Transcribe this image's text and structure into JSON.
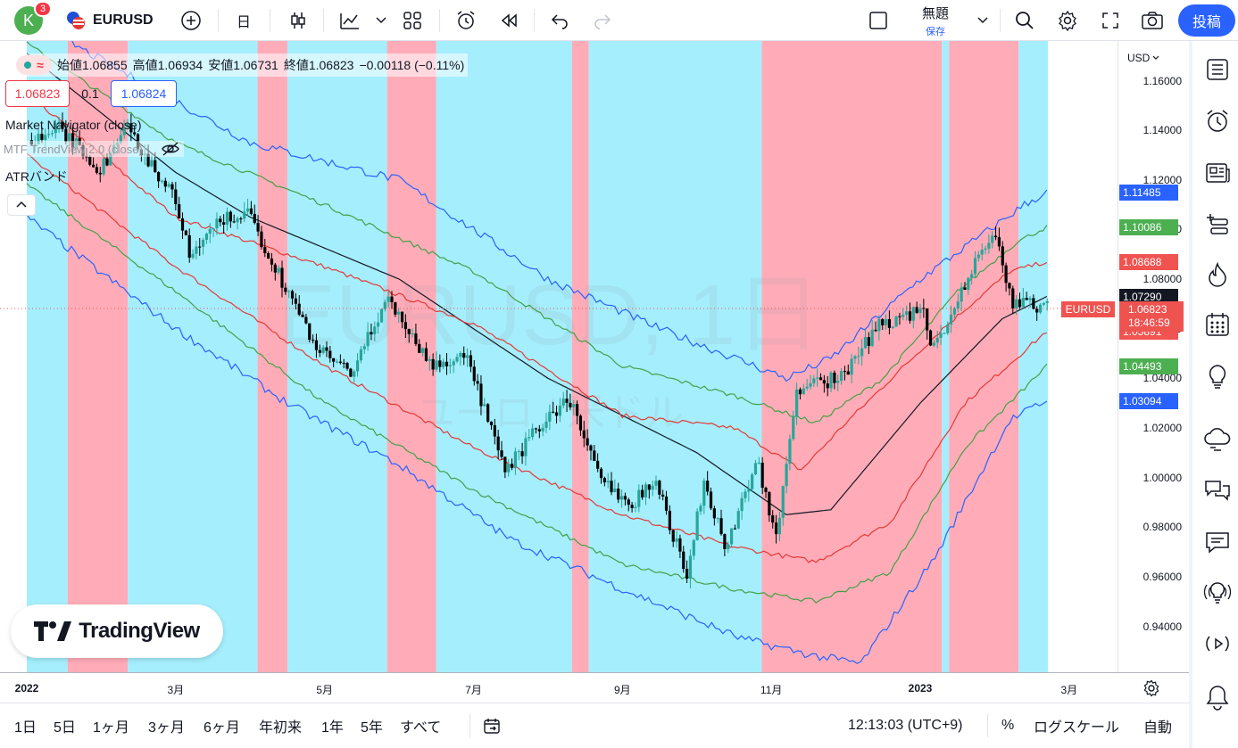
{
  "toolbar": {
    "avatar_letter": "K",
    "notification_count": "3",
    "symbol": "EURUSD",
    "interval": "日",
    "layout_name": "無題",
    "layout_sub": "保存",
    "publish_label": "投稿"
  },
  "legend": {
    "open_label": "始値",
    "open": "1.06855",
    "high_label": "高値",
    "high": "1.06934",
    "low_label": "安値",
    "low": "1.06731",
    "close_label": "終値",
    "close": "1.06823",
    "change": "−0.00118 (−0.11%)",
    "bid": "1.06823",
    "spread": "0.1",
    "ask": "1.06824",
    "indicators": [
      "Market Navigator (close)",
      "MTF TrendView 2.0 (close)",
      "ATRバンド"
    ]
  },
  "watermark": {
    "title": "EURUSD, 1日",
    "subtitle": "ユーロ / 米ドル"
  },
  "brand": "TradingView",
  "price_axis": {
    "currency": "USD",
    "ticks": [
      "1.16000",
      "1.14000",
      "1.12000",
      "1.10000",
      "1.08000",
      "1.06000",
      "1.04000",
      "1.02000",
      "1.00000",
      "0.98000",
      "0.96000",
      "0.94000"
    ],
    "labels": [
      {
        "value": "1.11485",
        "color": "#2962ff"
      },
      {
        "value": "1.10086",
        "color": "#4caf50"
      },
      {
        "value": "1.08688",
        "color": "#f05350"
      },
      {
        "value": "1.07290",
        "color": "#131722"
      },
      {
        "value": "1.05891",
        "color": "#f05350"
      },
      {
        "value": "1.04493",
        "color": "#4caf50"
      },
      {
        "value": "1.03094",
        "color": "#2962ff"
      }
    ],
    "current": {
      "symbol": "EURUSD",
      "price": "1.06823",
      "countdown": "18:46:59",
      "color": "#ef5350"
    }
  },
  "time_axis": [
    "2022",
    "3月",
    "5月",
    "7月",
    "9月",
    "11月",
    "2023",
    "3月"
  ],
  "bottom": {
    "ranges": [
      "1日",
      "5日",
      "1ヶ月",
      "3ヶ月",
      "6ヶ月",
      "年初来",
      "1年",
      "5年",
      "すべて"
    ],
    "clock": "12:13:03 (UTC+9)",
    "percent": "%",
    "log": "ログスケール",
    "auto": "自動"
  },
  "colors": {
    "up": "#26a69a",
    "down": "#000000",
    "bg_cyan": "#a5eefd",
    "bg_pink": "#ffacb8",
    "band_blue": "#2962ff",
    "band_green": "#43a047",
    "band_red": "#e53935",
    "mid": "#131722"
  },
  "chart_data": {
    "type": "candlestick",
    "symbol": "EURUSD",
    "interval": "1D",
    "ylim": [
      0.925,
      1.172
    ],
    "note_x": "months from 2022-01-01 (0 = 2022-01, 12 = 2023-01)",
    "regimes": [
      {
        "from": "2022-01-01",
        "to": "2022-01-18",
        "state": "bullish"
      },
      {
        "from": "2022-01-18",
        "to": "2022-02-11",
        "state": "bearish"
      },
      {
        "from": "2022-02-11",
        "to": "2022-04-04",
        "state": "bullish"
      },
      {
        "from": "2022-04-04",
        "to": "2022-04-16",
        "state": "bearish"
      },
      {
        "from": "2022-04-16",
        "to": "2022-05-27",
        "state": "bullish"
      },
      {
        "from": "2022-05-27",
        "to": "2022-06-16",
        "state": "bearish"
      },
      {
        "from": "2022-06-16",
        "to": "2022-08-11",
        "state": "bullish"
      },
      {
        "from": "2022-08-11",
        "to": "2022-08-18",
        "state": "bearish"
      },
      {
        "from": "2022-08-18",
        "to": "2022-10-28",
        "state": "bullish"
      },
      {
        "from": "2022-10-28",
        "to": "2023-01-10",
        "state": "bearish"
      },
      {
        "from": "2023-01-10",
        "to": "2023-01-13",
        "state": "bullish"
      },
      {
        "from": "2023-01-13",
        "to": "2023-02-10",
        "state": "bearish"
      },
      {
        "from": "2023-02-10",
        "to": "2023-02-21",
        "state": "bullish"
      }
    ],
    "close_path": [
      {
        "date": "2022-01-03",
        "close": 1.136
      },
      {
        "date": "2022-01-14",
        "close": 1.141
      },
      {
        "date": "2022-02-01",
        "close": 1.124
      },
      {
        "date": "2022-02-10",
        "close": 1.142
      },
      {
        "date": "2022-03-01",
        "close": 1.112
      },
      {
        "date": "2022-03-07",
        "close": 1.088
      },
      {
        "date": "2022-03-20",
        "close": 1.104
      },
      {
        "date": "2022-03-31",
        "close": 1.106
      },
      {
        "date": "2022-04-12",
        "close": 1.083
      },
      {
        "date": "2022-04-28",
        "close": 1.052
      },
      {
        "date": "2022-05-12",
        "close": 1.041
      },
      {
        "date": "2022-05-27",
        "close": 1.073
      },
      {
        "date": "2022-06-14",
        "close": 1.045
      },
      {
        "date": "2022-06-28",
        "close": 1.049
      },
      {
        "date": "2022-07-14",
        "close": 1.002
      },
      {
        "date": "2022-07-28",
        "close": 1.02
      },
      {
        "date": "2022-08-10",
        "close": 1.032
      },
      {
        "date": "2022-08-23",
        "close": 0.998
      },
      {
        "date": "2022-09-06",
        "close": 0.99
      },
      {
        "date": "2022-09-14",
        "close": 1.0
      },
      {
        "date": "2022-09-27",
        "close": 0.96
      },
      {
        "date": "2022-10-04",
        "close": 0.999
      },
      {
        "date": "2022-10-13",
        "close": 0.971
      },
      {
        "date": "2022-10-26",
        "close": 1.008
      },
      {
        "date": "2022-11-03",
        "close": 0.975
      },
      {
        "date": "2022-11-11",
        "close": 1.035
      },
      {
        "date": "2022-11-30",
        "close": 1.041
      },
      {
        "date": "2022-12-15",
        "close": 1.062
      },
      {
        "date": "2023-01-02",
        "close": 1.067
      },
      {
        "date": "2023-01-06",
        "close": 1.051
      },
      {
        "date": "2023-01-26",
        "close": 1.09
      },
      {
        "date": "2023-02-02",
        "close": 1.099
      },
      {
        "date": "2023-02-07",
        "close": 1.071
      },
      {
        "date": "2023-02-21",
        "close": 1.068
      }
    ],
    "bands": {
      "mid": [
        [
          0,
          1.171
        ],
        [
          2,
          1.123
        ],
        [
          3,
          1.105
        ],
        [
          5,
          1.08
        ],
        [
          7,
          1.04
        ],
        [
          9,
          1.01
        ],
        [
          10.2,
          0.985
        ],
        [
          10.8,
          0.987
        ],
        [
          12,
          1.03
        ],
        [
          13.1,
          1.064
        ],
        [
          13.7,
          1.073
        ]
      ],
      "red_upper": [
        [
          0,
          1.155
        ],
        [
          2,
          1.105
        ],
        [
          4,
          1.085
        ],
        [
          6,
          1.062
        ],
        [
          8,
          1.025
        ],
        [
          9.5,
          1.02
        ],
        [
          10.4,
          1.003
        ],
        [
          11,
          1.022
        ],
        [
          12.3,
          1.06
        ],
        [
          13.2,
          1.083
        ],
        [
          13.7,
          1.087
        ]
      ],
      "red_lower": [
        [
          0,
          1.13
        ],
        [
          2,
          1.085
        ],
        [
          4,
          1.045
        ],
        [
          6,
          1.012
        ],
        [
          8,
          0.985
        ],
        [
          9.5,
          0.972
        ],
        [
          10.6,
          0.966
        ],
        [
          11.6,
          0.982
        ],
        [
          12.6,
          1.03
        ],
        [
          13.7,
          1.059
        ]
      ],
      "green_upper": [
        [
          0,
          1.175
        ],
        [
          2,
          1.135
        ],
        [
          4,
          1.11
        ],
        [
          6,
          1.083
        ],
        [
          8,
          1.045
        ],
        [
          9.5,
          1.033
        ],
        [
          10.6,
          1.022
        ],
        [
          11.5,
          1.04
        ],
        [
          12.5,
          1.075
        ],
        [
          13.3,
          1.095
        ],
        [
          13.7,
          1.101
        ]
      ],
      "green_lower": [
        [
          0,
          1.118
        ],
        [
          2,
          1.075
        ],
        [
          4,
          1.03
        ],
        [
          6,
          0.995
        ],
        [
          8,
          0.965
        ],
        [
          9.5,
          0.955
        ],
        [
          10.6,
          0.95
        ],
        [
          11.6,
          0.962
        ],
        [
          12.6,
          1.012
        ],
        [
          13.7,
          1.045
        ]
      ],
      "blue_upper": [
        [
          0,
          1.185
        ],
        [
          1.5,
          1.16
        ],
        [
          3,
          1.135
        ],
        [
          5,
          1.12
        ],
        [
          7,
          1.08
        ],
        [
          8.5,
          1.06
        ],
        [
          10.2,
          1.04
        ],
        [
          10.8,
          1.048
        ],
        [
          12,
          1.08
        ],
        [
          13.4,
          1.11
        ],
        [
          13.7,
          1.115
        ]
      ],
      "blue_lower": [
        [
          0,
          1.105
        ],
        [
          2,
          1.06
        ],
        [
          3.5,
          1.03
        ],
        [
          5,
          1.005
        ],
        [
          6.5,
          0.975
        ],
        [
          8,
          0.955
        ],
        [
          9.6,
          0.935
        ],
        [
          10.6,
          0.928
        ],
        [
          11.2,
          0.925
        ],
        [
          12.2,
          0.968
        ],
        [
          13.2,
          1.023
        ],
        [
          13.7,
          1.031
        ]
      ]
    }
  }
}
